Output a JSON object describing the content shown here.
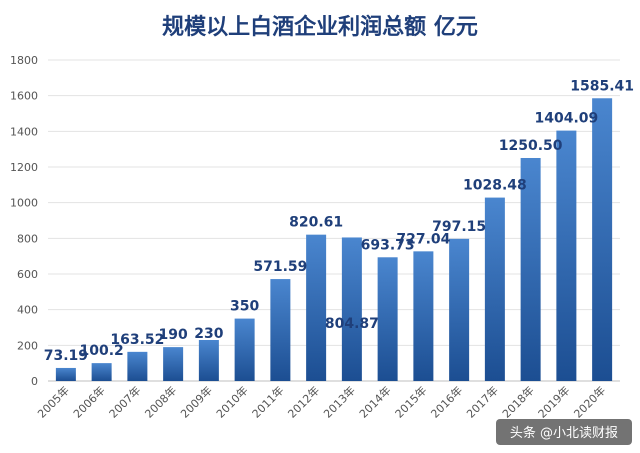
{
  "chart_data": {
    "type": "bar",
    "title": "规模以上白酒企业利润总额 亿元",
    "categories": [
      "2005年",
      "2006年",
      "2007年",
      "2008年",
      "2009年",
      "2010年",
      "2011年",
      "2012年",
      "2013年",
      "2014年",
      "2015年",
      "2016年",
      "2017年",
      "2018年",
      "2019年",
      "2020年"
    ],
    "values": [
      73.19,
      100.2,
      163.52,
      190,
      230,
      350,
      571.59,
      820.61,
      804.87,
      693.73,
      727.04,
      797.15,
      1028.48,
      1250.5,
      1404.09,
      1585.41
    ],
    "value_labels": [
      "73.19",
      "100.2",
      "163.52",
      "190",
      "230",
      "350",
      "571.59",
      "820.61",
      "804.87",
      "693.73",
      "727.04",
      "797.15",
      "1028.48",
      "1250.50",
      "1404.09",
      "1585.41"
    ],
    "ylim": [
      0,
      1800
    ],
    "yticks": [
      0,
      200,
      400,
      600,
      800,
      1000,
      1200,
      1400,
      1600,
      1800
    ],
    "ytick_labels": [
      "0",
      "200",
      "400",
      "600",
      "800",
      "1000",
      "1200",
      "1400",
      "1600",
      "1800"
    ],
    "xlabel": "",
    "ylabel": "",
    "grid": true,
    "bar_color_top": "#4a86cf",
    "bar_color_bottom": "#1c4e92",
    "label_color": "#1f3f7a"
  },
  "watermark": {
    "text": "头条 @小北读财报"
  }
}
